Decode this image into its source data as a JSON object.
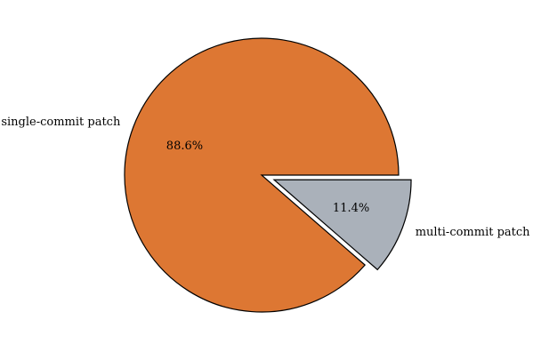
{
  "chart_data": {
    "type": "pie",
    "title": "",
    "slices": [
      {
        "label": "single-commit patch",
        "value": 88.6,
        "pct_label": "88.6%",
        "color": "#DD7733",
        "explode": false
      },
      {
        "label": "multi-commit patch",
        "value": 11.4,
        "pct_label": "11.4%",
        "color": "#AAB1BA",
        "explode": true
      }
    ],
    "start_angle_deg": 0,
    "direction": "counterclockwise",
    "legend": "none"
  }
}
